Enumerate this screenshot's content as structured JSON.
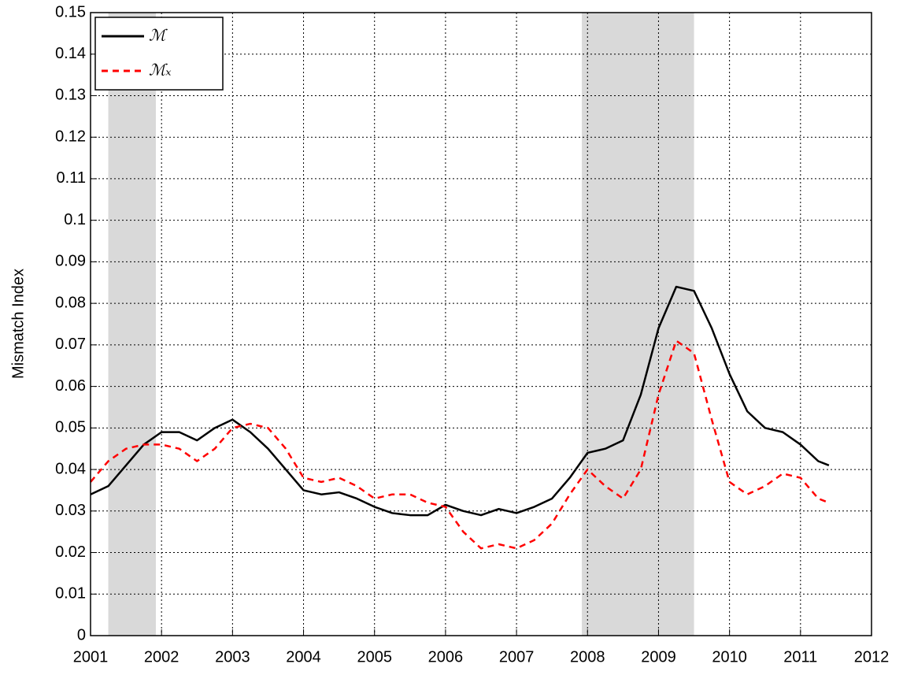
{
  "chart_data": {
    "type": "line",
    "y_label": "Mismatch Index",
    "x": [
      2001.0,
      2001.25,
      2001.5,
      2001.75,
      2002.0,
      2002.25,
      2002.5,
      2002.75,
      2003.0,
      2003.25,
      2003.5,
      2003.75,
      2004.0,
      2004.25,
      2004.5,
      2004.75,
      2005.0,
      2005.25,
      2005.5,
      2005.75,
      2006.0,
      2006.25,
      2006.5,
      2006.75,
      2007.0,
      2007.25,
      2007.5,
      2007.75,
      2008.0,
      2008.25,
      2008.5,
      2008.75,
      2009.0,
      2009.25,
      2009.5,
      2009.75,
      2010.0,
      2010.25,
      2010.5,
      2010.75,
      2011.0,
      2011.25,
      2011.4
    ],
    "series": [
      {
        "name": "ℳ",
        "color": "#000000",
        "dash": false,
        "values": [
          0.034,
          0.036,
          0.041,
          0.046,
          0.049,
          0.049,
          0.047,
          0.05,
          0.052,
          0.049,
          0.045,
          0.04,
          0.035,
          0.034,
          0.0345,
          0.033,
          0.031,
          0.0295,
          0.029,
          0.029,
          0.0315,
          0.03,
          0.029,
          0.0305,
          0.0295,
          0.031,
          0.033,
          0.038,
          0.044,
          0.045,
          0.047,
          0.058,
          0.074,
          0.084,
          0.083,
          0.074,
          0.063,
          0.054,
          0.05,
          0.049,
          0.046,
          0.042,
          0.041
        ]
      },
      {
        "name": "ℳₓ",
        "color": "#ff0000",
        "dash": true,
        "values": [
          0.037,
          0.042,
          0.045,
          0.046,
          0.046,
          0.045,
          0.042,
          0.045,
          0.05,
          0.051,
          0.05,
          0.045,
          0.038,
          0.037,
          0.038,
          0.036,
          0.033,
          0.034,
          0.034,
          0.032,
          0.031,
          0.025,
          0.021,
          0.022,
          0.021,
          0.023,
          0.027,
          0.034,
          0.04,
          0.036,
          0.033,
          0.04,
          0.058,
          0.071,
          0.068,
          0.052,
          0.037,
          0.034,
          0.036,
          0.039,
          0.038,
          0.033,
          0.032
        ]
      }
    ],
    "shaded": [
      [
        2001.25,
        2001.92
      ],
      [
        2007.92,
        2009.5
      ]
    ],
    "shade_color": "#d9d9d9",
    "xlim": [
      2001,
      2012
    ],
    "xticks": [
      2001,
      2002,
      2003,
      2004,
      2005,
      2006,
      2007,
      2008,
      2009,
      2010,
      2011,
      2012
    ],
    "ylim": [
      0,
      0.15
    ],
    "yticks": [
      0,
      0.01,
      0.02,
      0.03,
      0.04,
      0.05,
      0.06,
      0.07,
      0.08,
      0.09,
      0.1,
      0.11,
      0.12,
      0.13,
      0.14,
      0.15
    ],
    "grid": true,
    "legend": "upper left"
  }
}
